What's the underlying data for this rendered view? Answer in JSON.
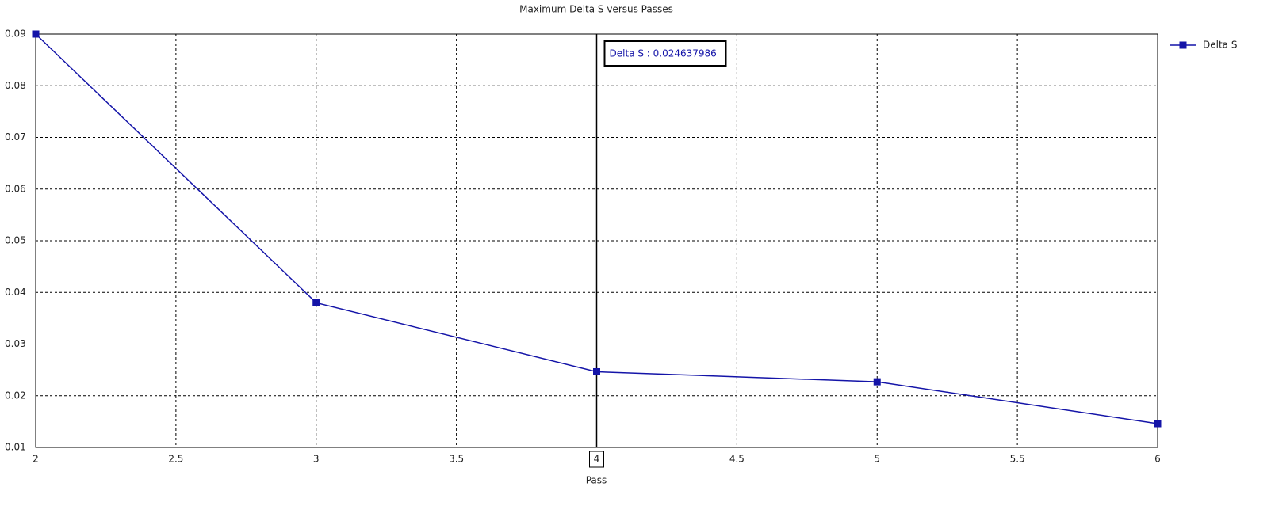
{
  "chart_data": {
    "type": "line",
    "title": "Maximum Delta S versus Passes",
    "x_label": "Pass",
    "x": [
      2,
      3,
      4,
      5,
      6
    ],
    "series": [
      {
        "name": "Delta S",
        "color": "#1414a8",
        "values": [
          0.09,
          0.038,
          0.024637986,
          0.0227,
          0.0146
        ]
      }
    ],
    "xlim": [
      2,
      6
    ],
    "xticks": [
      2,
      2.5,
      3,
      3.5,
      4,
      4.5,
      5,
      5.5,
      6
    ],
    "ylim": [
      0.01,
      0.09
    ],
    "yticks": [
      0.01,
      0.02,
      0.03,
      0.04,
      0.05,
      0.06,
      0.07,
      0.08,
      0.09
    ],
    "grid": true,
    "legend": "right",
    "cursor": {
      "x": 4,
      "text": "Delta S : 0.024637986"
    }
  }
}
